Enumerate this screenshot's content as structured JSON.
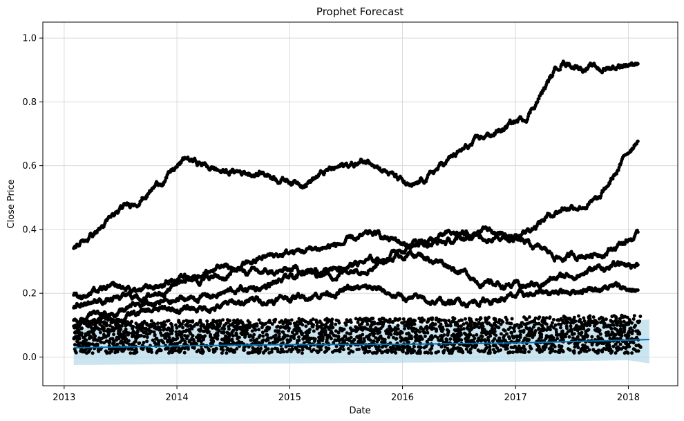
{
  "chart_data": {
    "type": "scatter",
    "title": "Prophet Forecast",
    "xlabel": "Date",
    "ylabel": "Close Price",
    "xlim": [
      "2012-10-24",
      "2018-06-10"
    ],
    "ylim": [
      -0.09,
      1.05
    ],
    "x_ticks": [
      "2013",
      "2014",
      "2015",
      "2016",
      "2017",
      "2018"
    ],
    "y_ticks": [
      "0.0",
      "0.2",
      "0.4",
      "0.6",
      "0.8",
      "1.0"
    ],
    "grid": true,
    "legend": "none",
    "colors": {
      "observed": "#000000",
      "forecast": "#0072B2",
      "interval": "#A9D3E6",
      "grid": "#d9d9d9"
    },
    "series": [
      {
        "role": "observed",
        "style": "points",
        "x": [
          "2013-02-01",
          "2013-06-01",
          "2013-10-01",
          "2014-02-01",
          "2014-06-01",
          "2014-10-01",
          "2015-02-01",
          "2015-06-01",
          "2015-10-01",
          "2016-02-01",
          "2016-06-01",
          "2016-10-01",
          "2017-02-01",
          "2017-06-01",
          "2017-10-01",
          "2018-02-01"
        ],
        "y": [
          0.34,
          0.43,
          0.52,
          0.62,
          0.58,
          0.58,
          0.55,
          0.59,
          0.62,
          0.52,
          0.62,
          0.69,
          0.75,
          0.93,
          0.9,
          0.93
        ]
      },
      {
        "role": "observed",
        "style": "points",
        "x": [
          "2013-02-01",
          "2013-06-01",
          "2013-10-01",
          "2014-02-01",
          "2014-06-01",
          "2014-10-01",
          "2015-02-01",
          "2015-06-01",
          "2015-10-01",
          "2016-02-01",
          "2016-06-01",
          "2016-10-01",
          "2017-02-01",
          "2017-06-01",
          "2017-10-01",
          "2018-02-01"
        ],
        "y": [
          0.19,
          0.21,
          0.21,
          0.26,
          0.28,
          0.26,
          0.27,
          0.26,
          0.3,
          0.36,
          0.36,
          0.38,
          0.4,
          0.47,
          0.49,
          0.69
        ]
      },
      {
        "role": "observed",
        "style": "points",
        "x": [
          "2013-02-01",
          "2013-06-01",
          "2013-10-01",
          "2014-02-01",
          "2014-06-01",
          "2014-10-01",
          "2015-02-01",
          "2015-06-01",
          "2015-10-01",
          "2016-02-01",
          "2016-06-01",
          "2016-10-01",
          "2017-02-01",
          "2017-06-01",
          "2017-10-01",
          "2018-02-01"
        ],
        "y": [
          0.16,
          0.18,
          0.19,
          0.25,
          0.25,
          0.31,
          0.33,
          0.35,
          0.38,
          0.35,
          0.38,
          0.39,
          0.35,
          0.31,
          0.33,
          0.38
        ]
      },
      {
        "role": "observed",
        "style": "points",
        "x": [
          "2013-02-01",
          "2013-06-01",
          "2013-10-01",
          "2014-02-01",
          "2014-06-01",
          "2014-10-01",
          "2015-02-01",
          "2015-06-01",
          "2015-10-01",
          "2016-02-01",
          "2016-06-01",
          "2016-10-01",
          "2017-02-01",
          "2017-06-01",
          "2017-10-01",
          "2018-02-01"
        ],
        "y": [
          0.12,
          0.14,
          0.16,
          0.18,
          0.2,
          0.22,
          0.25,
          0.29,
          0.3,
          0.33,
          0.29,
          0.23,
          0.22,
          0.25,
          0.28,
          0.29
        ]
      },
      {
        "role": "observed",
        "style": "points",
        "x": [
          "2013-02-01",
          "2013-06-01",
          "2013-10-01",
          "2014-02-01",
          "2014-06-01",
          "2014-10-01",
          "2015-02-01",
          "2015-06-01",
          "2015-10-01",
          "2016-02-01",
          "2016-06-01",
          "2016-10-01",
          "2017-02-01",
          "2017-06-01",
          "2017-10-01",
          "2018-02-01"
        ],
        "y": [
          0.1,
          0.12,
          0.14,
          0.15,
          0.16,
          0.18,
          0.19,
          0.21,
          0.21,
          0.18,
          0.17,
          0.18,
          0.19,
          0.21,
          0.22,
          0.21
        ]
      },
      {
        "role": "forecast",
        "style": "line",
        "x": [
          "2013-02-01",
          "2014-01-01",
          "2015-01-01",
          "2016-01-01",
          "2017-01-01",
          "2018-01-01",
          "2018-03-10"
        ],
        "y": [
          0.029,
          0.035,
          0.039,
          0.04,
          0.044,
          0.053,
          0.055
        ],
        "lower": [
          -0.025,
          -0.022,
          -0.02,
          -0.018,
          -0.015,
          -0.01,
          -0.02
        ],
        "upper": [
          0.09,
          0.095,
          0.1,
          0.102,
          0.105,
          0.112,
          0.118
        ]
      }
    ]
  }
}
